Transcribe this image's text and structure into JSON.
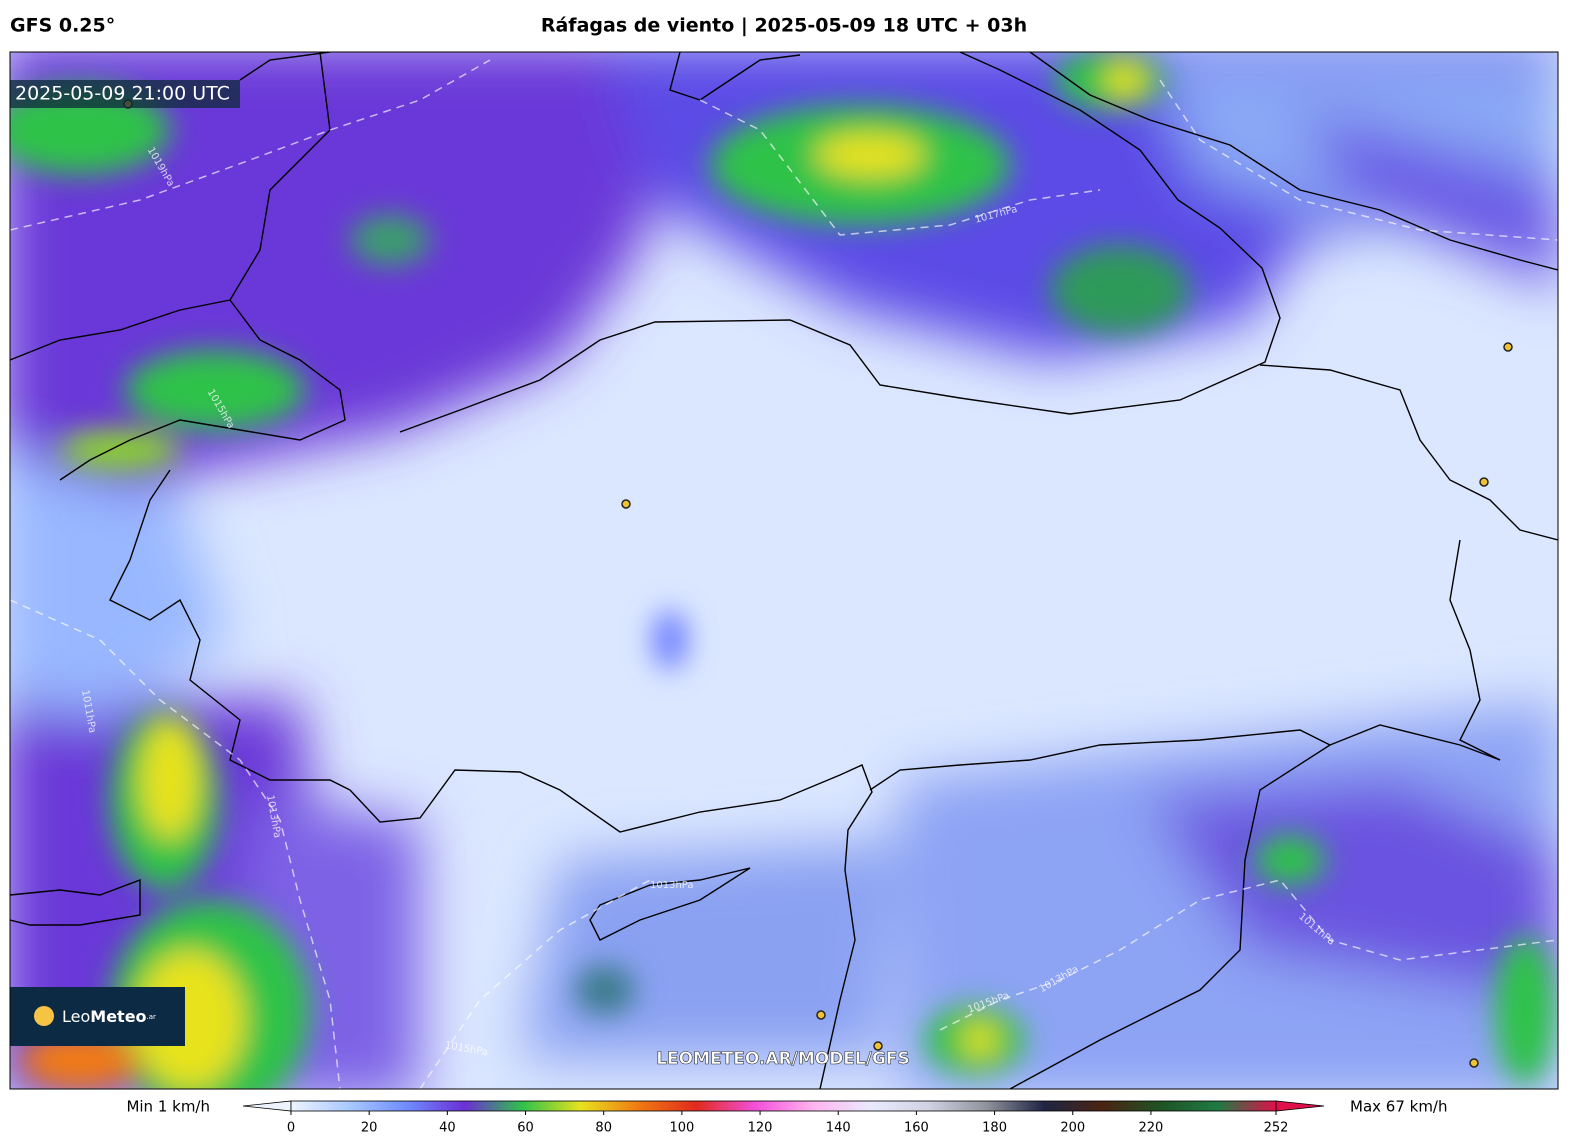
{
  "header": {
    "model": "GFS 0.25°",
    "title": "Ráfagas de viento | 2025-05-09 18 UTC + 03h"
  },
  "map": {
    "timestamp": "2025-05-09 21:00 UTC",
    "watermark": "LEOMETEO.AR/MODEL/GFS",
    "logo": {
      "name": "Leo",
      "name_bold": "Meteo",
      "suffix": ".ar"
    },
    "isobar_labels": [
      "1019hPa",
      "1017hPa",
      "1015hPa",
      "1013hPa",
      "1011hPa",
      "1015hPa",
      "1013hPa",
      "1015hPa",
      "1011hPa",
      "1013hPa"
    ]
  },
  "colorbar": {
    "min_label": "Min 1 km/h",
    "max_label": "Max 67 km/h",
    "range": [
      0,
      252
    ],
    "ticks": [
      0,
      20,
      40,
      60,
      80,
      100,
      120,
      140,
      160,
      180,
      200,
      220,
      252
    ],
    "colors": [
      "#eef4ff",
      "#a9c9ff",
      "#6f8cff",
      "#6b2fd6",
      "#2fc24a",
      "#e7e21f",
      "#f07a12",
      "#e12a1e",
      "#f24fd9",
      "#ffb3ef",
      "#eaeaff",
      "#cfd2e3",
      "#8f939c",
      "#1f2444",
      "#4a2312",
      "#1f5324",
      "#1f7a44",
      "#e0104a"
    ]
  }
}
